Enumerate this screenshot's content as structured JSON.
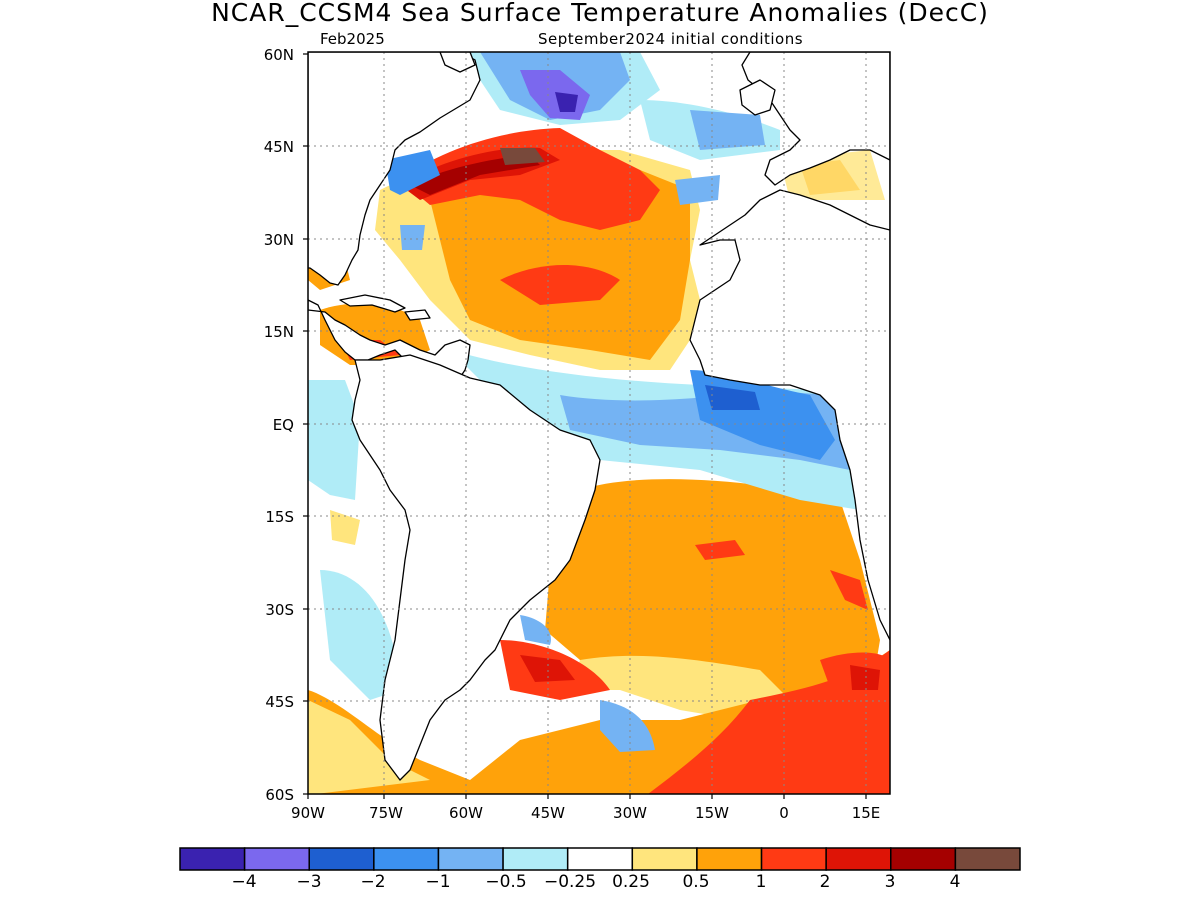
{
  "title": "NCAR_CCSM4 Sea Surface Temperature Anomalies (DecC)",
  "subtitle_left": "Feb2025",
  "subtitle_right": "September2024 initial conditions",
  "lat_labels": [
    "60N",
    "45N",
    "30N",
    "15N",
    "EQ",
    "15S",
    "30S",
    "45S",
    "60S"
  ],
  "lon_labels": [
    "90W",
    "75W",
    "60W",
    "45W",
    "30W",
    "15W",
    "0",
    "15E"
  ],
  "colorbar": {
    "colors": [
      "#3a22b0",
      "#7b68ee",
      "#1e5fd0",
      "#3c91f0",
      "#74b3f3",
      "#b0ecf7",
      "#ffffff",
      "#ffe57d",
      "#ffa20a",
      "#ff3a14",
      "#de1406",
      "#a50000",
      "#78493b"
    ],
    "labels": [
      "−4",
      "−3",
      "−2",
      "−1",
      "−0.5",
      "−0.25",
      "0.25",
      "0.5",
      "1",
      "2",
      "3",
      "4"
    ]
  }
}
